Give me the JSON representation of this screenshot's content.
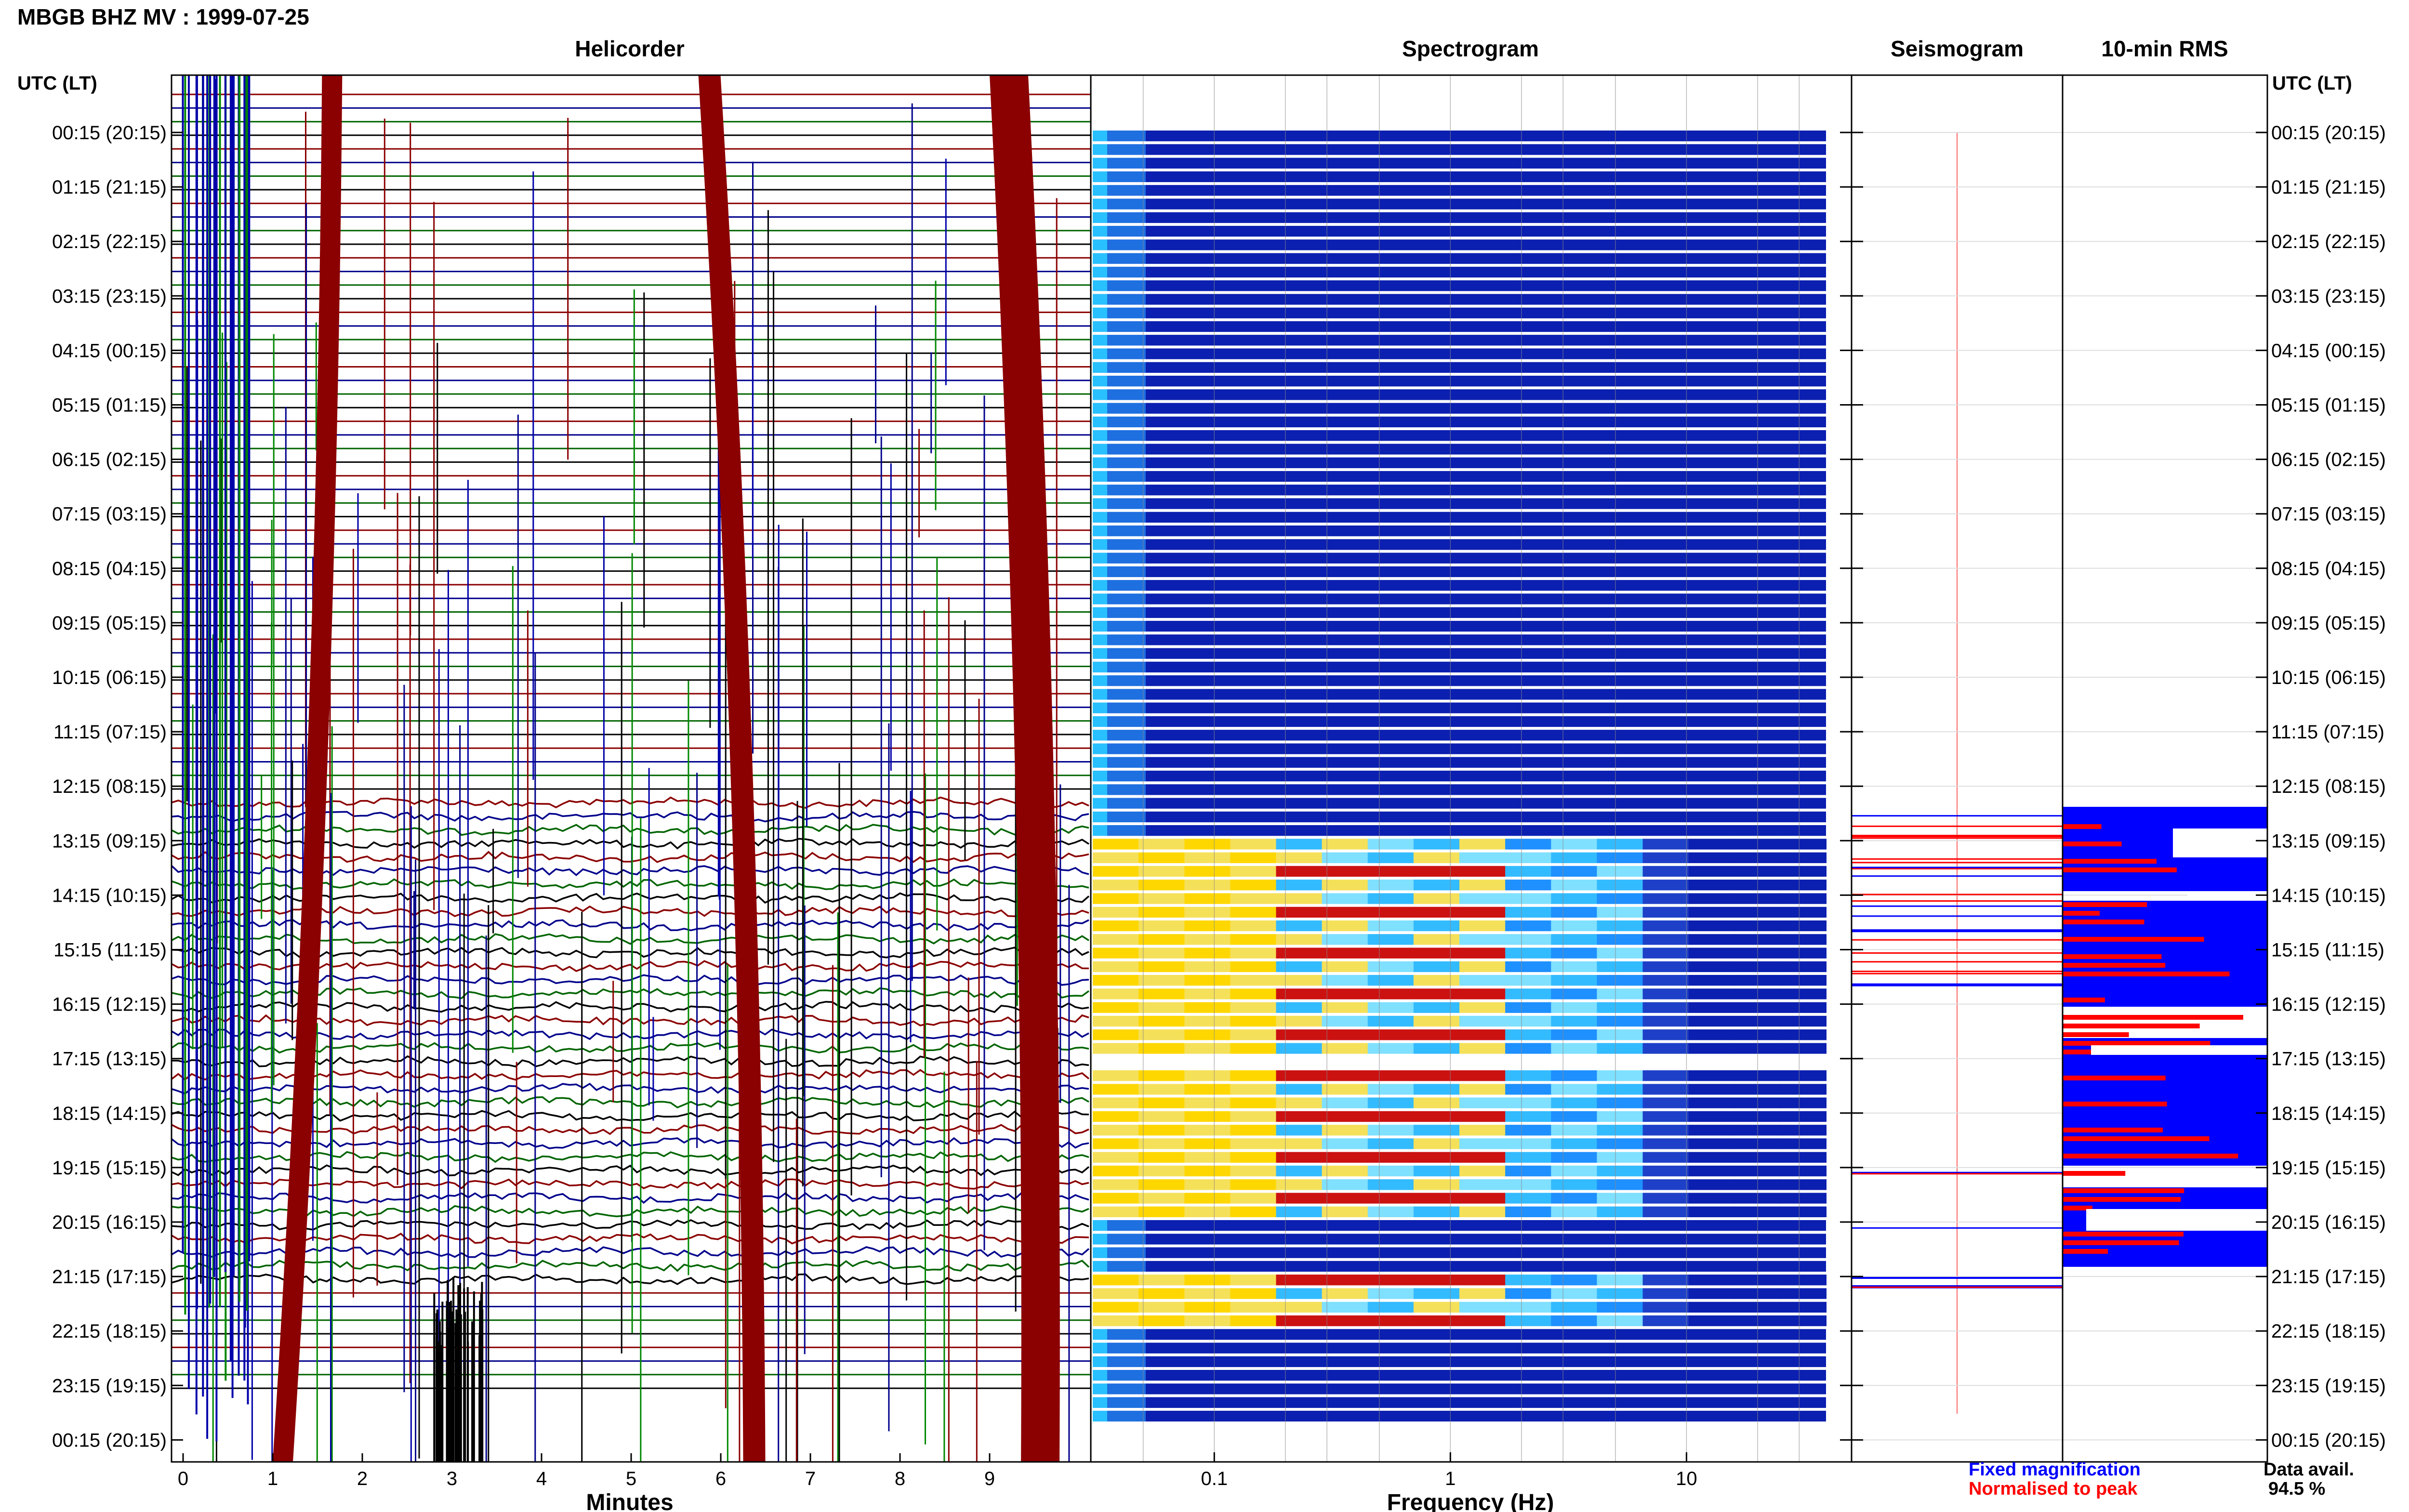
{
  "station_title": "MBGB BHZ MV : 1999-07-25",
  "panels": {
    "helicorder": "Helicorder",
    "spectrogram": "Spectrogram",
    "seismogram": "Seismogram",
    "rms": "10-min RMS"
  },
  "time_axis_title": "UTC (LT)",
  "legend": {
    "fixed": "Fixed magnification",
    "normalised": "Normalised to peak",
    "fixed_color": "#0000ff",
    "normalised_color": "#ff0000"
  },
  "availability": {
    "label": "Data avail.",
    "value": "94.5 %"
  },
  "chart_data": [
    {
      "type": "line",
      "title": "Helicorder",
      "xlabel": "Minutes",
      "x_ticks": [
        "0",
        "1",
        "2",
        "3",
        "4",
        "5",
        "6",
        "7",
        "8",
        "9"
      ],
      "xlim": [
        0,
        10
      ],
      "y_tick_labels": [
        "00:15 (20:15)",
        "01:15 (21:15)",
        "02:15 (22:15)",
        "03:15 (23:15)",
        "04:15 (00:15)",
        "05:15 (01:15)",
        "06:15 (02:15)",
        "07:15 (03:15)",
        "08:15 (04:15)",
        "09:15 (05:15)",
        "10:15 (06:15)",
        "11:15 (07:15)",
        "12:15 (08:15)",
        "13:15 (09:15)",
        "14:15 (10:15)",
        "15:15 (11:15)",
        "16:15 (12:15)",
        "17:15 (13:15)",
        "18:15 (14:15)",
        "19:15 (15:15)",
        "20:15 (16:15)",
        "21:15 (17:15)",
        "22:15 (18:15)",
        "23:15 (19:15)",
        "00:15 (20:15)"
      ],
      "trace_colors": [
        "#8b0000",
        "#00008b",
        "#006400",
        "#000000"
      ],
      "active_hours_utc": [
        13,
        22
      ]
    },
    {
      "type": "heatmap",
      "title": "Spectrogram",
      "xlabel": "Frequency (Hz)",
      "x_scale": "log",
      "x_ticks": [
        0.1,
        1,
        10
      ],
      "x_tick_labels": [
        "0.1",
        "1",
        "10"
      ],
      "xlim": [
        0.03,
        50
      ]
    },
    {
      "type": "line",
      "title": "Seismogram"
    },
    {
      "type": "bar",
      "title": "10-min RMS",
      "orientation": "horizontal",
      "series": [
        {
          "name": "Fixed magnification",
          "color": "#0000ff"
        },
        {
          "name": "Normalised to peak",
          "color": "#ff0000"
        }
      ]
    }
  ]
}
